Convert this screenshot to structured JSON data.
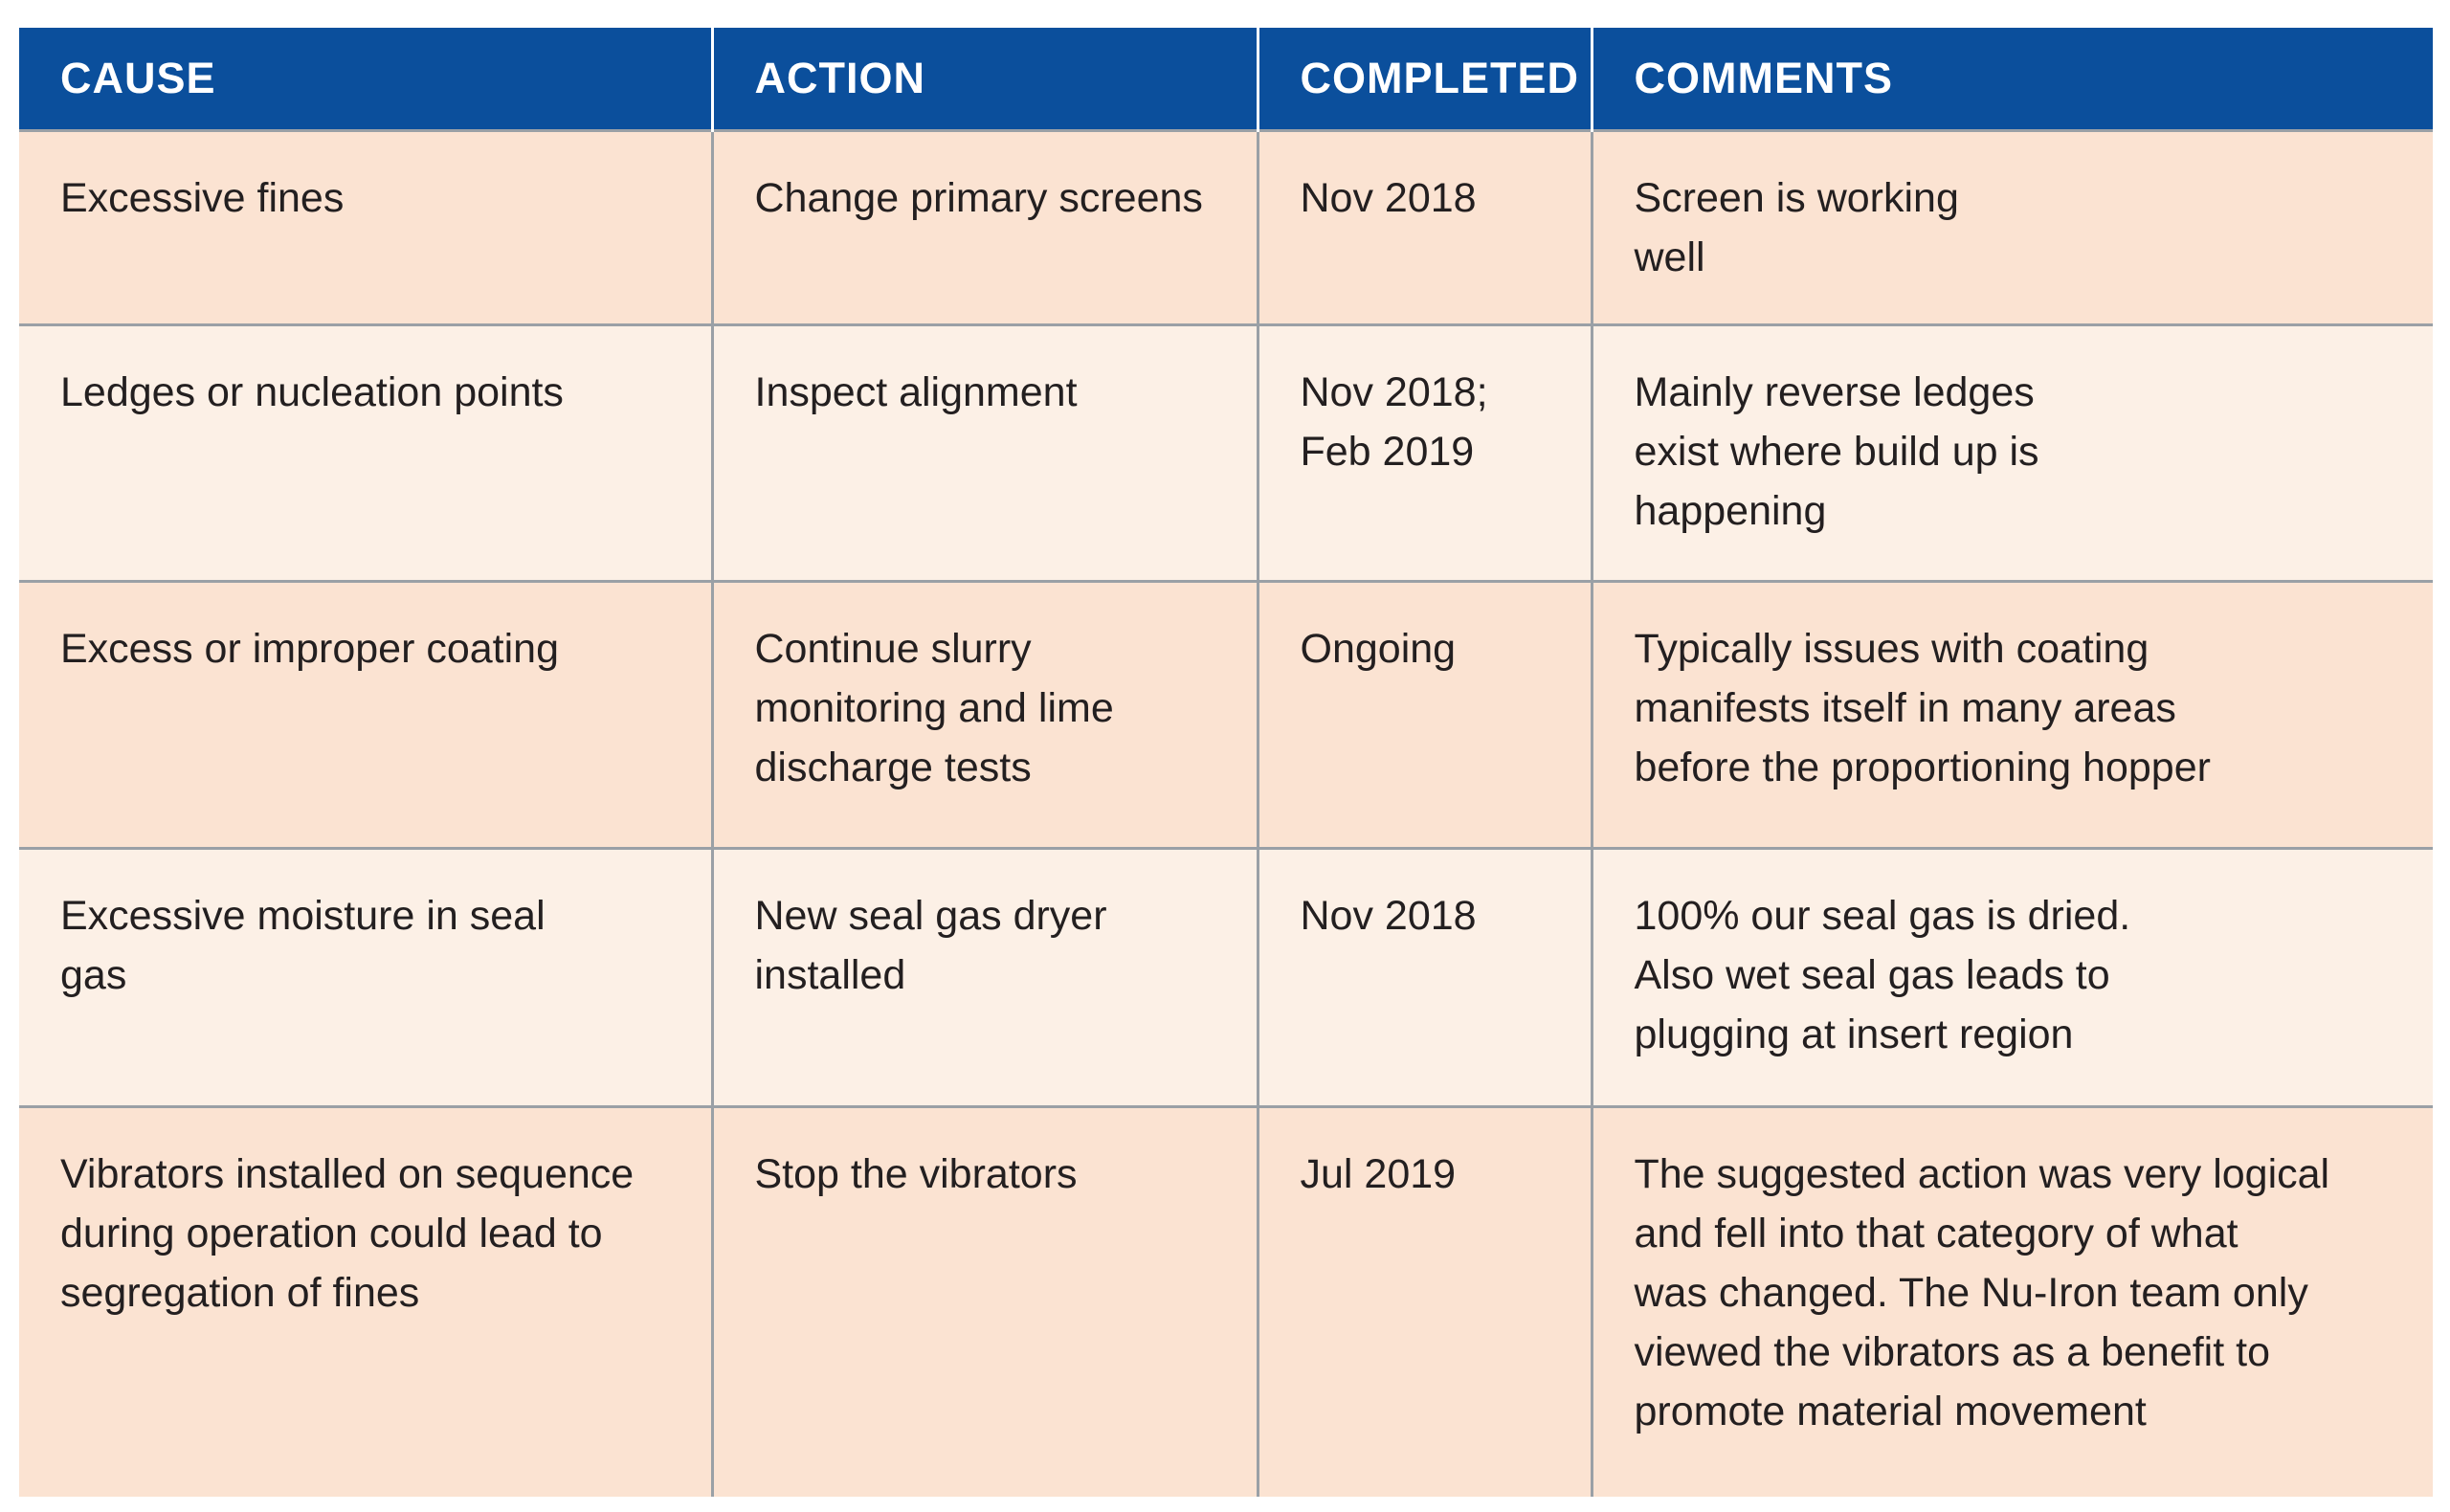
{
  "table": {
    "headers": [
      "CAUSE",
      "ACTION",
      "COMPLETED",
      "COMMENTS"
    ],
    "rows": [
      {
        "cause": "Excessive fines",
        "action": "Change primary screens",
        "completed": "Nov 2018",
        "comments": "Screen is working\nwell"
      },
      {
        "cause": "Ledges or nucleation points",
        "action": "Inspect alignment",
        "completed": "Nov 2018;\nFeb 2019",
        "comments": "Mainly reverse ledges\nexist where build up is\nhappening"
      },
      {
        "cause": "Excess or improper coating",
        "action": "Continue slurry\nmonitoring and lime\ndischarge tests",
        "completed": "Ongoing",
        "comments": "Typically issues with coating\nmanifests itself in many areas\nbefore the proportioning hopper"
      },
      {
        "cause": "Excessive moisture in seal\ngas",
        "action": "New seal gas dryer\ninstalled",
        "completed": "Nov 2018",
        "comments": "100% our seal gas is dried.\nAlso wet seal gas leads to\nplugging at insert region"
      },
      {
        "cause": "Vibrators installed on sequence\nduring operation could lead to\nsegregation of fines",
        "action": "Stop the vibrators",
        "completed": "Jul 2019",
        "comments": "The suggested action was very logical\nand fell into that category of what\nwas changed. The Nu-Iron team only\nviewed the vibrators as a benefit to\npromote material movement"
      }
    ]
  },
  "colors": {
    "header_bg": "#0b4f9c",
    "row_odd_bg": "#fbe3d2",
    "row_even_bg": "#fcf0e6",
    "grid_line": "#9aa0a6"
  }
}
